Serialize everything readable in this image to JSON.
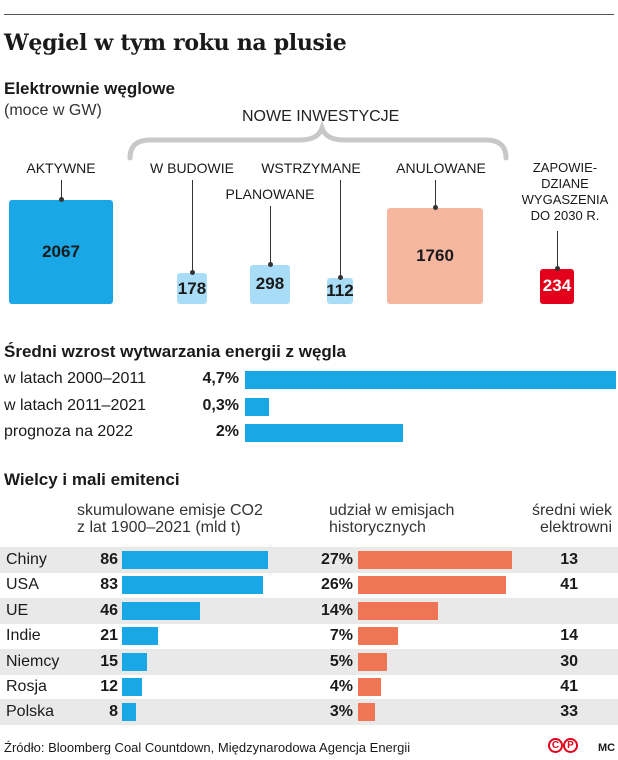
{
  "title": "Węgiel w tym roku na plusie",
  "section1": {
    "heading": "Elektrownie węglowe",
    "unit": "(moce w GW)",
    "group_label": "NOWE INWESTYCJE"
  },
  "section2": {
    "heading": "Średni wzrost wytwarzania energii z węgla"
  },
  "section3": {
    "heading": "Wielcy i mali emitenci",
    "col1": [
      "skumulowane emisje CO2",
      "z lat 1900–2021 (mld t)"
    ],
    "col2": [
      "udział w emisjach",
      "historycznych"
    ],
    "col3": [
      "średni wiek",
      "elektrowni"
    ]
  },
  "footer": {
    "source": "Źródło: Bloomberg Coal Countdown, Międzynarodowa Agencja Energii",
    "c_mark": "C",
    "p_mark": "P",
    "author": "MC"
  },
  "colors": {
    "blue": "#1aa7e6",
    "light_blue": "#a9dcf6",
    "salmon": "#f6b7a1",
    "red": "#e2001a",
    "bar_red": "#ef7555"
  },
  "chart_data": [
    {
      "type": "bar",
      "title": "Elektrownie węglowe",
      "unit": "GW",
      "categories": [
        [
          "AKTYWNE"
        ],
        [
          "W BUDOWIE"
        ],
        [
          "PLANOWANE"
        ],
        [
          "WSTRZYMANE"
        ],
        [
          "ANULOWANE"
        ],
        [
          "ZAPOWIE-",
          "DZIANE",
          "WYGASZENIA",
          "DO 2030 R."
        ]
      ],
      "values": [
        2067,
        178,
        298,
        112,
        1760,
        234
      ]
    },
    {
      "type": "bar",
      "title": "Średni wzrost wytwarzania energii z węgla",
      "categories": [
        "w latach 2000–2011",
        "w latach 2011–2021",
        "prognoza na 2022"
      ],
      "values": [
        4.7,
        0.3,
        2
      ],
      "labels": [
        "4,7%",
        "0,3%",
        "2%"
      ]
    },
    {
      "type": "table",
      "title": "Wielcy i mali emitenci",
      "rows": [
        {
          "country": "Chiny",
          "emissions": 86,
          "share": 27,
          "share_label": "27%",
          "age": "13"
        },
        {
          "country": "USA",
          "emissions": 83,
          "share": 26,
          "share_label": "26%",
          "age": "41"
        },
        {
          "country": "UE",
          "emissions": 46,
          "share": 14,
          "share_label": "14%",
          "age": ""
        },
        {
          "country": "Indie",
          "emissions": 21,
          "share": 7,
          "share_label": "7%",
          "age": "14"
        },
        {
          "country": "Niemcy",
          "emissions": 15,
          "share": 5,
          "share_label": "5%",
          "age": "30"
        },
        {
          "country": "Rosja",
          "emissions": 12,
          "share": 4,
          "share_label": "4%",
          "age": "41"
        },
        {
          "country": "Polska",
          "emissions": 8,
          "share": 3,
          "share_label": "3%",
          "age": "33"
        }
      ]
    }
  ]
}
